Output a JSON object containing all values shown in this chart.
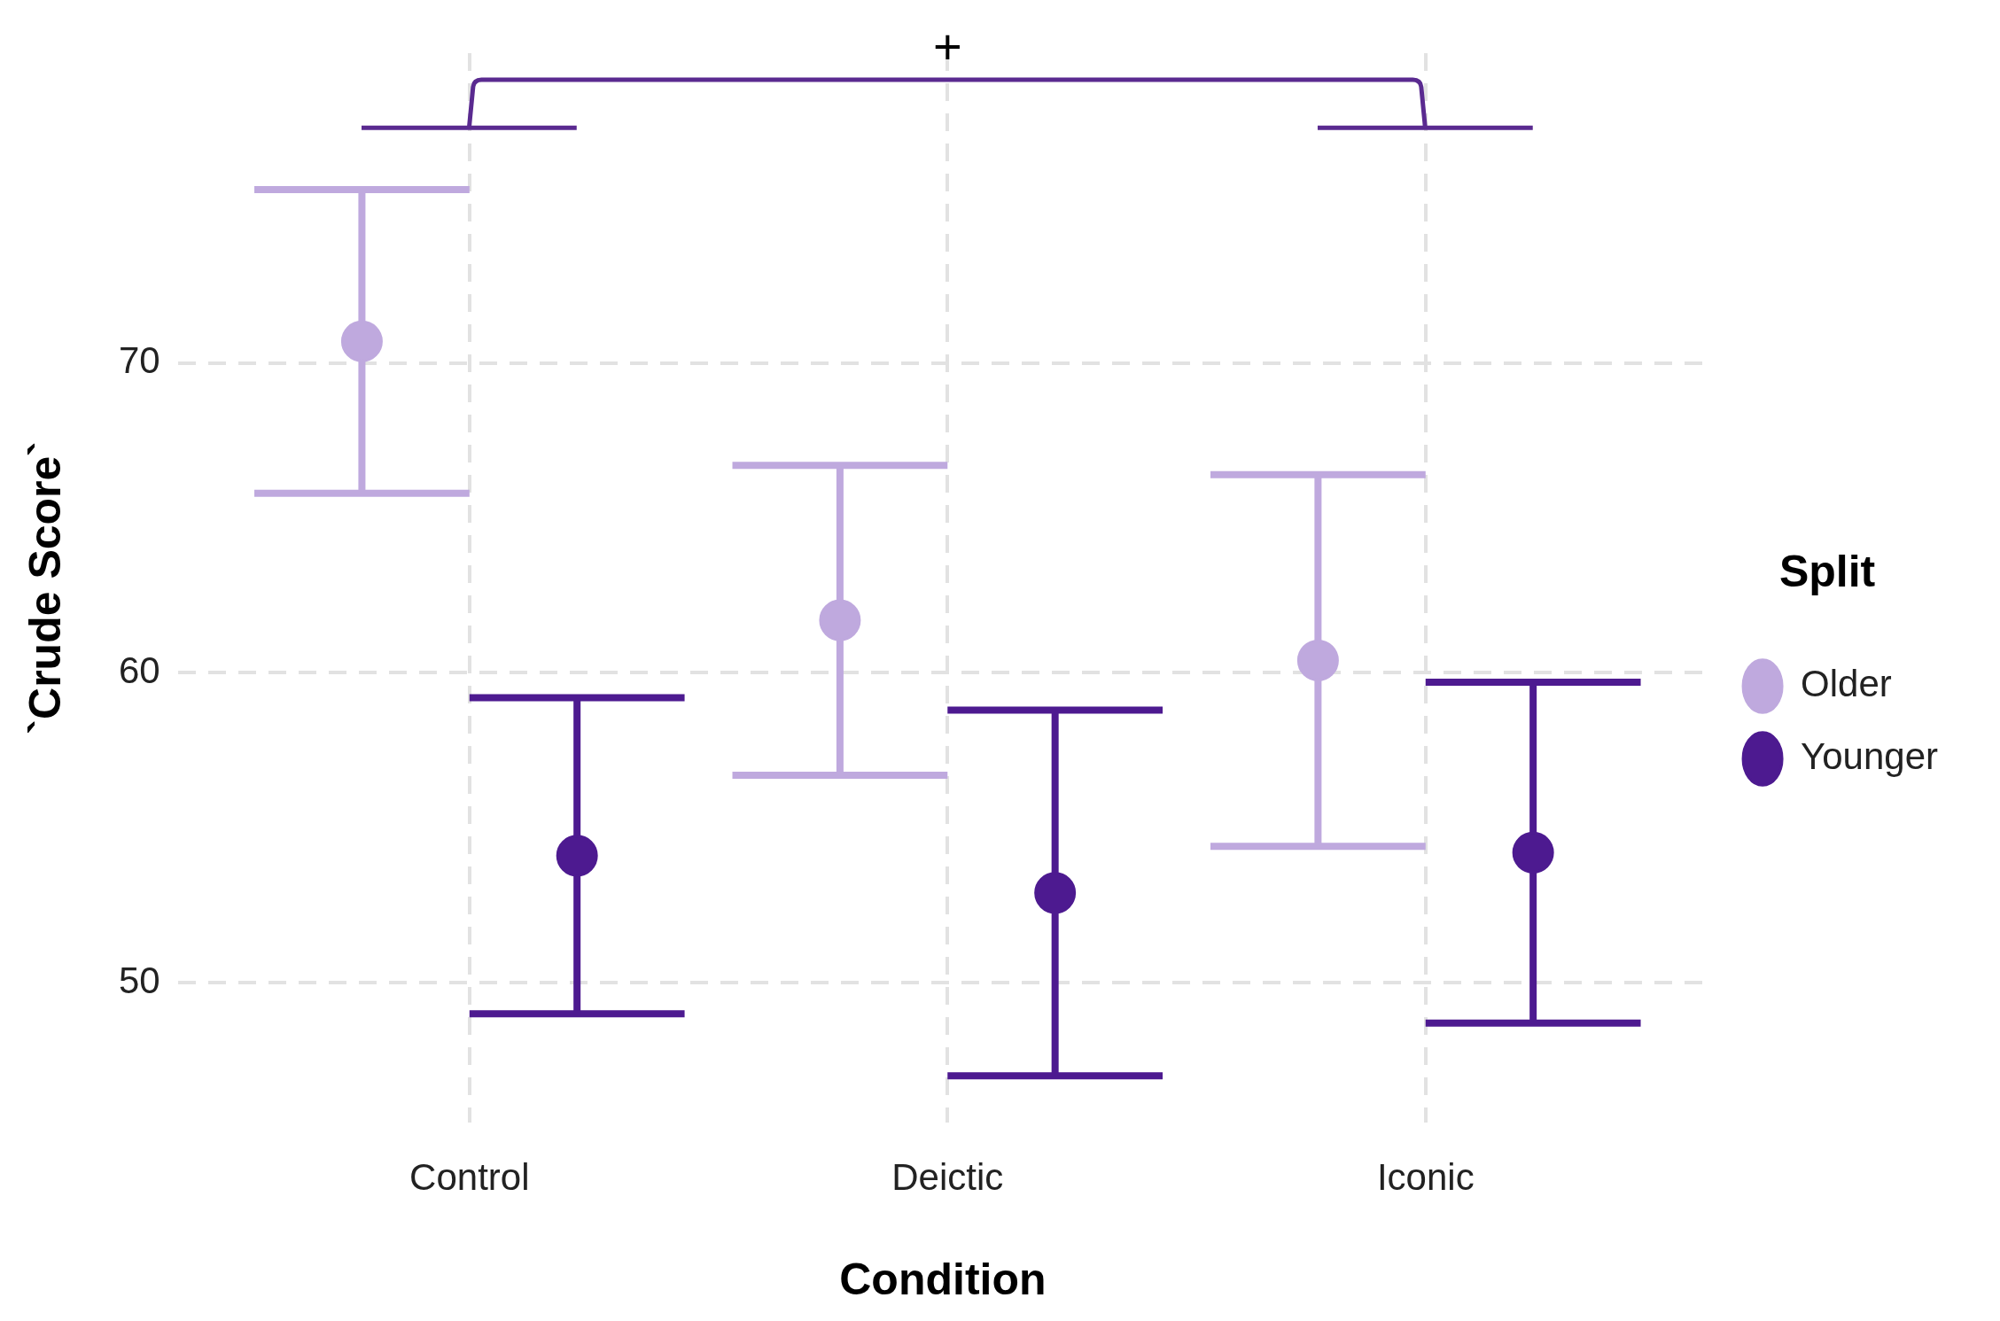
{
  "chart_data": {
    "type": "scatter",
    "xlabel": "Condition",
    "ylabel": "`Crude Score`",
    "legend_title": "Split",
    "categories": [
      "Control",
      "Deictic",
      "Iconic"
    ],
    "series": [
      {
        "name": "Older",
        "color": "#bfa9de",
        "values": [
          70.7,
          61.7,
          60.4
        ],
        "errors": [
          4.9,
          5.0,
          6.0
        ]
      },
      {
        "name": "Younger",
        "color": "#4d1a90",
        "values": [
          54.1,
          52.9,
          54.2
        ],
        "errors": [
          5.1,
          5.9,
          5.5
        ]
      }
    ],
    "ylim": [
      45.5,
      80
    ],
    "yticks": [
      50,
      60,
      70
    ],
    "grid": true,
    "legend": "right",
    "marker": "circle",
    "annotations": [
      "+"
    ]
  }
}
